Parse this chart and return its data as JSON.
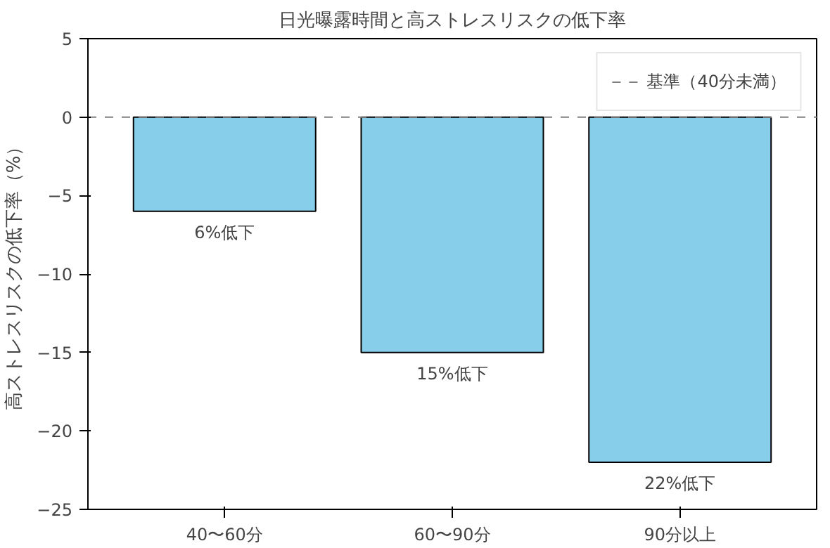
{
  "chart_data": {
    "type": "bar",
    "title": "日光曝露時間と高ストレスリスクの低下率",
    "ylabel": "高ストレスリスクの低下率（%）",
    "categories": [
      "40〜60分",
      "60〜90分",
      "90分以上"
    ],
    "values": [
      -6,
      -15,
      -22
    ],
    "color": "#87ceeb",
    "annotations": [
      {
        "text": "6%低下",
        "x": "40〜60分",
        "y": -6
      },
      {
        "text": "15%低下",
        "x": "60〜90分",
        "y": -15
      },
      {
        "text": "22%低下",
        "x": "90分以上",
        "y": -22
      }
    ],
    "ylim": [
      -25,
      5
    ],
    "yticks": [
      {
        "value": -25,
        "label": "−25"
      },
      {
        "value": -20,
        "label": "−20"
      },
      {
        "value": -15,
        "label": "−15"
      },
      {
        "value": -10,
        "label": "−10"
      },
      {
        "value": -5,
        "label": "−5"
      },
      0,
      5
    ],
    "ref_lines": [
      {
        "axis": "y",
        "value": 0,
        "label": "基準（40分未満）",
        "color": "#808080",
        "line_style": "dashed"
      }
    ],
    "legend": "top right",
    "grid": false
  }
}
